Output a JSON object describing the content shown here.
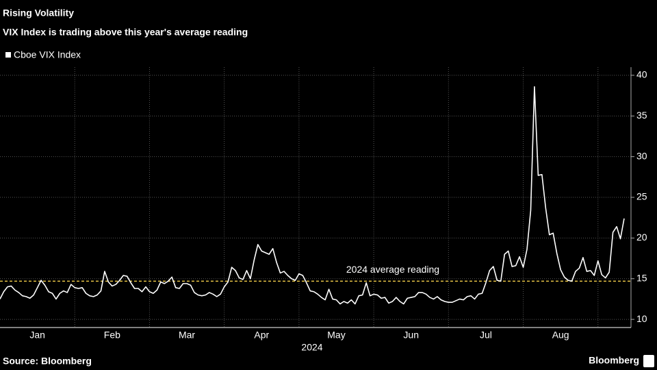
{
  "chart_data": {
    "type": "line",
    "title": "Rising Volatility",
    "subtitle": "VIX Index is trading above this year's average reading",
    "xlabel": "2024",
    "source": "Source: Bloomberg",
    "brand": "Bloomberg",
    "categories": [
      null,
      null,
      null,
      null,
      null,
      null,
      null,
      null,
      null,
      null,
      "Jan",
      null,
      null,
      null,
      null,
      null,
      null,
      null,
      null,
      null,
      null,
      null,
      null,
      null,
      null,
      null,
      null,
      null,
      null,
      null,
      "Feb",
      null,
      null,
      null,
      null,
      null,
      null,
      null,
      null,
      null,
      null,
      null,
      null,
      null,
      null,
      null,
      null,
      null,
      null,
      null,
      "Mar",
      null,
      null,
      null,
      null,
      null,
      null,
      null,
      null,
      null,
      null,
      null,
      null,
      null,
      null,
      null,
      null,
      null,
      null,
      null,
      "Apr",
      null,
      null,
      null,
      null,
      null,
      null,
      null,
      null,
      null,
      null,
      null,
      null,
      null,
      null,
      null,
      null,
      null,
      null,
      null,
      "May",
      null,
      null,
      null,
      null,
      null,
      null,
      null,
      null,
      null,
      null,
      null,
      null,
      null,
      null,
      null,
      null,
      null,
      null,
      null,
      "Jun",
      null,
      null,
      null,
      null,
      null,
      null,
      null,
      null,
      null,
      null,
      null,
      null,
      null,
      null,
      null,
      null,
      null,
      null,
      null,
      "Jul",
      null,
      null,
      null,
      null,
      null,
      null,
      null,
      null,
      null,
      null,
      null,
      null,
      null,
      null,
      null,
      null,
      null,
      null,
      null,
      "Aug",
      null,
      null,
      null,
      null,
      null,
      null,
      null,
      null,
      null,
      null,
      null,
      null,
      null,
      null,
      null,
      null,
      null
    ],
    "series": [
      {
        "name": "Cboe VIX Index",
        "color": "#ffffff",
        "values": [
          12.5,
          13.4,
          14.0,
          14.1,
          13.6,
          13.3,
          12.9,
          12.8,
          12.6,
          13.0,
          13.9,
          14.8,
          14.2,
          13.4,
          13.2,
          12.5,
          13.2,
          13.5,
          13.3,
          14.3,
          13.9,
          13.8,
          13.9,
          13.2,
          12.9,
          12.8,
          13.0,
          13.5,
          15.9,
          14.6,
          14.1,
          14.3,
          14.8,
          15.4,
          15.3,
          14.5,
          13.8,
          13.8,
          13.4,
          14.0,
          13.4,
          13.2,
          13.6,
          14.6,
          14.4,
          14.7,
          15.2,
          13.9,
          13.8,
          14.4,
          14.4,
          14.2,
          13.3,
          13.0,
          12.9,
          13.0,
          13.3,
          13.1,
          12.8,
          13.1,
          14.0,
          14.6,
          16.4,
          16.0,
          15.1,
          14.9,
          16.0,
          15.0,
          17.3,
          19.2,
          18.4,
          18.2,
          18.0,
          18.7,
          17.0,
          15.7,
          15.9,
          15.4,
          15.0,
          14.8,
          15.6,
          15.4,
          14.5,
          13.5,
          13.4,
          13.1,
          12.7,
          12.4,
          13.7,
          12.5,
          12.4,
          11.9,
          12.2,
          12.0,
          12.4,
          11.9,
          12.9,
          13.0,
          14.5,
          12.9,
          13.1,
          13.0,
          12.6,
          12.7,
          12.0,
          12.2,
          12.7,
          12.2,
          11.9,
          12.6,
          12.7,
          12.8,
          13.3,
          13.3,
          13.1,
          12.7,
          12.5,
          12.8,
          12.4,
          12.2,
          12.1,
          12.1,
          12.3,
          12.5,
          12.4,
          12.8,
          12.9,
          12.5,
          13.1,
          13.2,
          14.5,
          16.0,
          16.5,
          14.8,
          14.7,
          18.0,
          18.4,
          16.5,
          16.6,
          17.7,
          16.4,
          18.6,
          23.4,
          38.6,
          27.7,
          27.8,
          23.7,
          20.4,
          20.6,
          18.1,
          16.1,
          15.2,
          14.8,
          14.7,
          15.9,
          16.3,
          17.6,
          15.9,
          16.0,
          15.4,
          17.2,
          15.5,
          15.1,
          15.8,
          20.7,
          21.4,
          19.9,
          22.4
        ]
      }
    ],
    "reference_line": {
      "value": 14.7,
      "label": "2024 average reading",
      "color": "#e8c547"
    },
    "ylim": [
      9,
      41
    ],
    "yticks": [
      10,
      15,
      20,
      25,
      30,
      35,
      40
    ],
    "grid": true
  }
}
